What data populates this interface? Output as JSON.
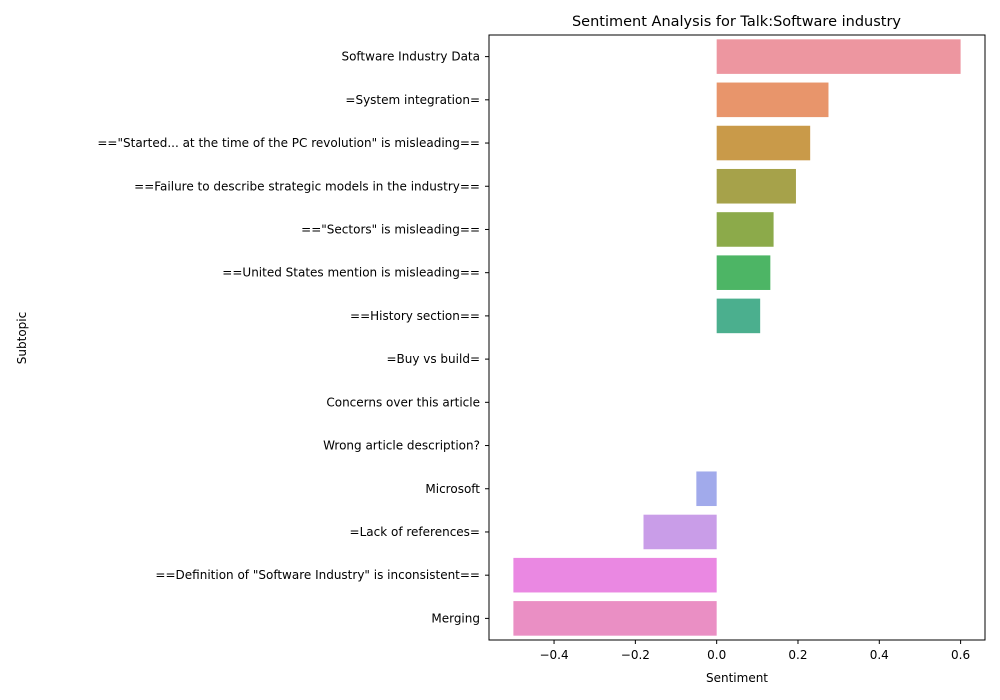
{
  "chart_data": {
    "type": "bar",
    "orientation": "horizontal",
    "title": "Sentiment Analysis for Talk:Software industry",
    "xlabel": "Sentiment",
    "ylabel": "Subtopic",
    "xlim": [
      -0.56,
      0.66
    ],
    "xticks": [
      -0.4,
      -0.2,
      0.0,
      0.2,
      0.4,
      0.6
    ],
    "xtick_labels": [
      "−0.4",
      "−0.2",
      "0.0",
      "0.2",
      "0.4",
      "0.6"
    ],
    "grid": false,
    "categories": [
      "Software Industry Data",
      "=System integration=",
      "==\"Started... at the time of the PC revolution\" is misleading==",
      "==Failure to describe strategic models in the industry==",
      "==\"Sectors\" is misleading==",
      "==United States mention is misleading==",
      "==History section==",
      "=Buy vs build=",
      "Concerns over this article",
      "Wrong article description?",
      "Microsoft",
      "=Lack of references=",
      "==Definition of \"Software Industry\" is inconsistent==",
      "Merging"
    ],
    "values": [
      0.6,
      0.275,
      0.23,
      0.195,
      0.14,
      0.132,
      0.107,
      0.0,
      0.0,
      0.0,
      -0.05,
      -0.18,
      -0.5,
      -0.5
    ],
    "colors": [
      "#ed96a0",
      "#e8956b",
      "#c99a49",
      "#a6a24a",
      "#8caa4a",
      "#4db565",
      "#4baf8e",
      "#4fb1b3",
      "#54b2c9",
      "#63aee3",
      "#a1aaeb",
      "#c99de8",
      "#ea88e2",
      "#ea8fc4"
    ]
  }
}
